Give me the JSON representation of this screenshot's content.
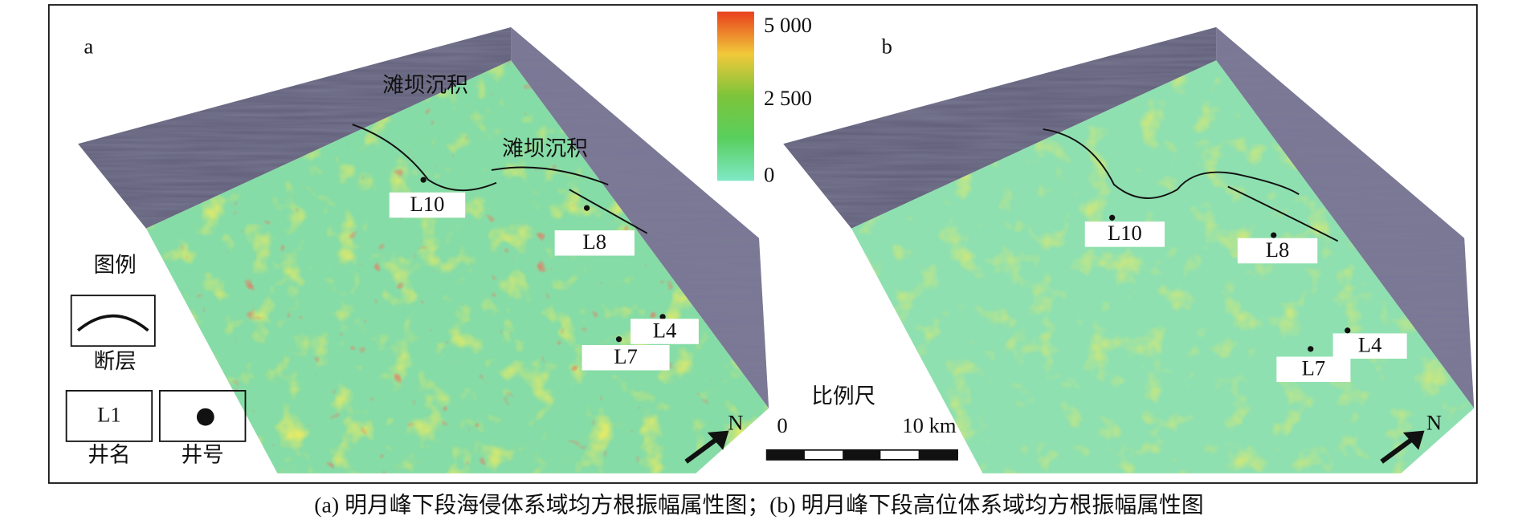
{
  "panels": [
    {
      "label": "a",
      "annotations": [
        "滩坝沉积",
        "滩坝沉积"
      ],
      "wells": [
        "L10",
        "L8",
        "L4",
        "L7"
      ],
      "north": "N"
    },
    {
      "label": "b",
      "wells": [
        "L10",
        "L8",
        "L4",
        "L7"
      ],
      "north": "N"
    }
  ],
  "colorbar": {
    "labels": [
      "5 000",
      "2 500",
      "0"
    ]
  },
  "legend": {
    "title": "图例",
    "fault": "断层",
    "well_name_sample": "L1",
    "well_name": "井名",
    "well_point": "井号"
  },
  "scale": {
    "title": "比例尺",
    "labels": [
      "0",
      "10 km"
    ]
  },
  "caption": "(a) 明月峰下段海侵体系域均方根振幅属性图；(b) 明月峰下段高位体系域均方根振幅属性图"
}
